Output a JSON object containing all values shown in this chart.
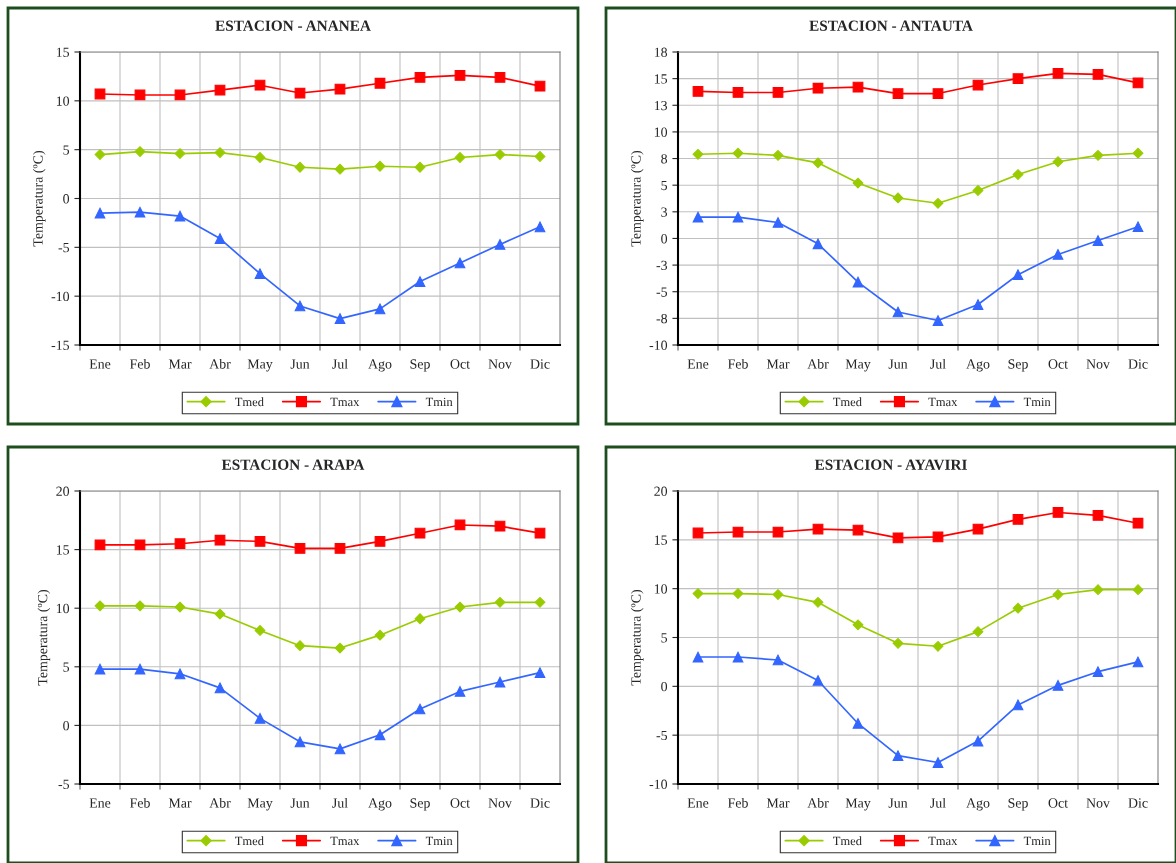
{
  "chart_data": [
    {
      "type": "line",
      "title": "ESTACION - ANANEA",
      "ylabel": "Temperatura (ºC)",
      "categories": [
        "Ene",
        "Feb",
        "Mar",
        "Abr",
        "May",
        "Jun",
        "Jul",
        "Ago",
        "Sep",
        "Oct",
        "Nov",
        "Dic"
      ],
      "ylim": [
        -15,
        15
      ],
      "yticks": [
        -15,
        -10,
        -5,
        0,
        5,
        10,
        15
      ],
      "grid": true,
      "legend": "bottom",
      "series": [
        {
          "name": "Tmed",
          "color": "#99cc00",
          "marker": "diamond",
          "values": [
            4.5,
            4.8,
            4.6,
            4.7,
            4.2,
            3.2,
            3.0,
            3.3,
            3.2,
            4.2,
            4.5,
            4.3
          ]
        },
        {
          "name": "Tmax",
          "color": "#ff0000",
          "marker": "square",
          "values": [
            10.7,
            10.6,
            10.6,
            11.1,
            11.6,
            10.8,
            11.2,
            11.8,
            12.4,
            12.6,
            12.4,
            11.5
          ]
        },
        {
          "name": "Tmin",
          "color": "#3366ff",
          "marker": "triangle",
          "values": [
            -1.5,
            -1.4,
            -1.8,
            -4.1,
            -7.7,
            -11.0,
            -12.3,
            -11.3,
            -8.5,
            -6.6,
            -4.7,
            -2.9
          ]
        }
      ]
    },
    {
      "type": "line",
      "title": "ESTACION - ANTAUTA",
      "ylabel": "Temperatura (ºC)",
      "categories": [
        "Ene",
        "Feb",
        "Mar",
        "Abr",
        "May",
        "Jun",
        "Jul",
        "Ago",
        "Sep",
        "Oct",
        "Nov",
        "Dic"
      ],
      "ylim": [
        -10,
        17.5
      ],
      "yticks": [
        -10,
        {
          "value": -7.5,
          "label": "-8"
        },
        -5,
        {
          "value": -2.5,
          "label": "-3"
        },
        0,
        {
          "value": 2.5,
          "label": "3"
        },
        5,
        {
          "value": 7.5,
          "label": "8"
        },
        10,
        {
          "value": 12.5,
          "label": "13"
        },
        15,
        {
          "value": 17.5,
          "label": "18"
        }
      ],
      "grid": true,
      "legend": "bottom",
      "series": [
        {
          "name": "Tmed",
          "color": "#99cc00",
          "marker": "diamond",
          "values": [
            7.9,
            8.0,
            7.8,
            7.1,
            5.2,
            3.8,
            3.3,
            4.5,
            6.0,
            7.2,
            7.8,
            8.0
          ]
        },
        {
          "name": "Tmax",
          "color": "#ff0000",
          "marker": "square",
          "values": [
            13.8,
            13.7,
            13.7,
            14.1,
            14.2,
            13.6,
            13.6,
            14.4,
            15.0,
            15.5,
            15.4,
            14.6
          ]
        },
        {
          "name": "Tmin",
          "color": "#3366ff",
          "marker": "triangle",
          "values": [
            2.0,
            2.0,
            1.5,
            -0.5,
            -4.1,
            -6.9,
            -7.7,
            -6.2,
            -3.4,
            -1.5,
            -0.2,
            1.1
          ]
        }
      ]
    },
    {
      "type": "line",
      "title": "ESTACION - ARAPA",
      "ylabel": "Temperatura (ºC)",
      "categories": [
        "Ene",
        "Feb",
        "Mar",
        "Abr",
        "May",
        "Jun",
        "Jul",
        "Ago",
        "Sep",
        "Oct",
        "Nov",
        "Dic"
      ],
      "ylim": [
        -5,
        20
      ],
      "yticks": [
        -5,
        0,
        5,
        10,
        15,
        20
      ],
      "grid": true,
      "legend": "bottom",
      "series": [
        {
          "name": "Tmed",
          "color": "#99cc00",
          "marker": "diamond",
          "values": [
            10.2,
            10.2,
            10.1,
            9.5,
            8.1,
            6.8,
            6.6,
            7.7,
            9.1,
            10.1,
            10.5,
            10.5
          ]
        },
        {
          "name": "Tmax",
          "color": "#ff0000",
          "marker": "square",
          "values": [
            15.4,
            15.4,
            15.5,
            15.8,
            15.7,
            15.1,
            15.1,
            15.7,
            16.4,
            17.1,
            17.0,
            16.4
          ]
        },
        {
          "name": "Tmin",
          "color": "#3366ff",
          "marker": "triangle",
          "values": [
            4.8,
            4.8,
            4.4,
            3.2,
            0.6,
            -1.4,
            -2.0,
            -0.8,
            1.4,
            2.9,
            3.7,
            4.5
          ]
        }
      ]
    },
    {
      "type": "line",
      "title": "ESTACION - AYAVIRI",
      "ylabel": "Temperatura (ºC)",
      "categories": [
        "Ene",
        "Feb",
        "Mar",
        "Abr",
        "May",
        "Jun",
        "Jul",
        "Ago",
        "Sep",
        "Oct",
        "Nov",
        "Dic"
      ],
      "ylim": [
        -10,
        20
      ],
      "yticks": [
        -10,
        -5,
        0,
        5,
        10,
        15,
        20
      ],
      "grid": true,
      "legend": "bottom",
      "series": [
        {
          "name": "Tmed",
          "color": "#99cc00",
          "marker": "diamond",
          "values": [
            9.5,
            9.5,
            9.4,
            8.6,
            6.3,
            4.4,
            4.1,
            5.6,
            8.0,
            9.4,
            9.9,
            9.9
          ]
        },
        {
          "name": "Tmax",
          "color": "#ff0000",
          "marker": "square",
          "values": [
            15.7,
            15.8,
            15.8,
            16.1,
            16.0,
            15.2,
            15.3,
            16.1,
            17.1,
            17.8,
            17.5,
            16.7
          ]
        },
        {
          "name": "Tmin",
          "color": "#3366ff",
          "marker": "triangle",
          "values": [
            3.0,
            3.0,
            2.7,
            0.6,
            -3.8,
            -7.1,
            -7.8,
            -5.6,
            -1.9,
            0.1,
            1.5,
            2.5
          ]
        }
      ]
    }
  ]
}
